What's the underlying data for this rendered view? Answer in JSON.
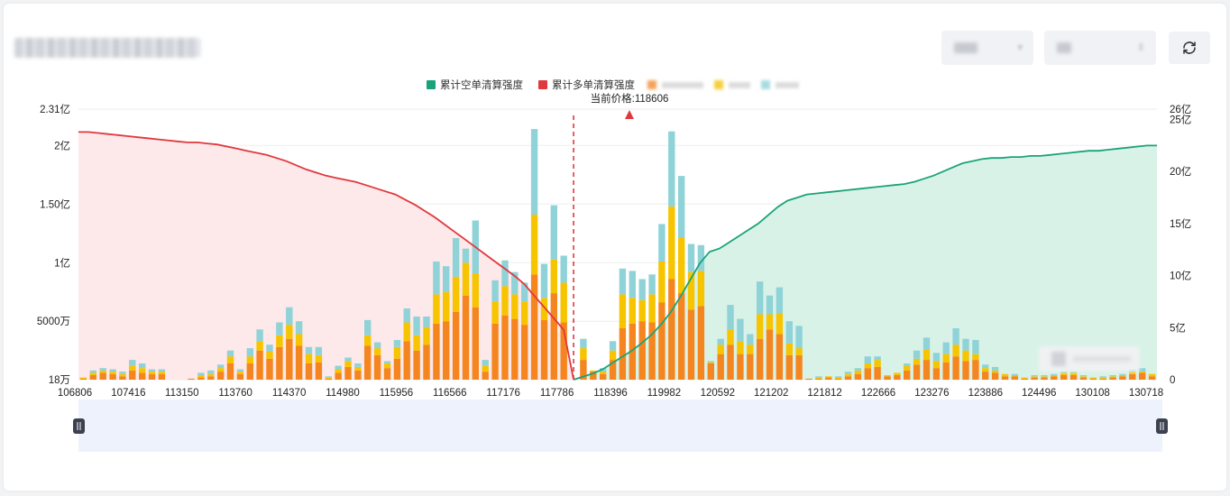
{
  "page": {
    "refresh_icon": "refresh-icon"
  },
  "colors": {
    "short_line": "#1aa37a",
    "long_line": "#e0383d",
    "short_fill": "#d9f2e8",
    "long_fill": "#fde8ea",
    "seg1": "#f5861f",
    "seg2": "#f7c400",
    "seg3": "#8fd3d8",
    "current_price": "#e0383d"
  },
  "legend": [
    {
      "label": "累计空单清算强度",
      "color": "#1aa37a",
      "type": "square"
    },
    {
      "label": "累计多单清算强度",
      "color": "#e0383d",
      "type": "square"
    }
  ],
  "current_price_label": "当前价格:118606",
  "chart_data": {
    "type": "bar",
    "x_tick_labels": [
      "106806",
      "107416",
      "113150",
      "113760",
      "114370",
      "114980",
      "115956",
      "116566",
      "117176",
      "117786",
      "118396",
      "119982",
      "120592",
      "121202",
      "121812",
      "122666",
      "123276",
      "123886",
      "124496",
      "130108",
      "130718"
    ],
    "y_left_tick_labels": [
      "18万",
      "5000万",
      "1亿",
      "1.50亿",
      "2亿",
      "2.31亿"
    ],
    "y_left_ticks": [
      0.0018,
      0.5,
      1.0,
      1.5,
      2.0,
      2.31
    ],
    "y_left_range": [
      0.0018,
      2.31
    ],
    "y_right_tick_labels": [
      "0",
      "5亿",
      "10亿",
      "15亿",
      "20亿",
      "25亿",
      "26亿"
    ],
    "y_right_ticks": [
      0,
      5,
      10,
      15,
      20,
      25,
      26
    ],
    "y_right_range": [
      0,
      26
    ],
    "current_price_index": 50,
    "current_price": 118606,
    "bars": [
      [
        0.01,
        0.01,
        0.0
      ],
      [
        0.04,
        0.02,
        0.02
      ],
      [
        0.06,
        0.02,
        0.02
      ],
      [
        0.05,
        0.02,
        0.02
      ],
      [
        0.03,
        0.02,
        0.02
      ],
      [
        0.08,
        0.04,
        0.05
      ],
      [
        0.06,
        0.04,
        0.04
      ],
      [
        0.05,
        0.02,
        0.02
      ],
      [
        0.05,
        0.02,
        0.02
      ],
      [
        0.0,
        0.0,
        0.0
      ],
      [
        0.0,
        0.0,
        0.0
      ],
      [
        0.01,
        0.0,
        0.0
      ],
      [
        0.02,
        0.02,
        0.02
      ],
      [
        0.03,
        0.02,
        0.03
      ],
      [
        0.07,
        0.03,
        0.03
      ],
      [
        0.14,
        0.06,
        0.05
      ],
      [
        0.05,
        0.02,
        0.02
      ],
      [
        0.14,
        0.06,
        0.07
      ],
      [
        0.25,
        0.08,
        0.1
      ],
      [
        0.18,
        0.06,
        0.06
      ],
      [
        0.28,
        0.1,
        0.11
      ],
      [
        0.35,
        0.12,
        0.15
      ],
      [
        0.29,
        0.1,
        0.11
      ],
      [
        0.14,
        0.08,
        0.06
      ],
      [
        0.15,
        0.06,
        0.07
      ],
      [
        0.01,
        0.01,
        0.01
      ],
      [
        0.06,
        0.03,
        0.03
      ],
      [
        0.11,
        0.05,
        0.03
      ],
      [
        0.08,
        0.03,
        0.03
      ],
      [
        0.29,
        0.09,
        0.13
      ],
      [
        0.21,
        0.06,
        0.05
      ],
      [
        0.1,
        0.04,
        0.02
      ],
      [
        0.18,
        0.1,
        0.06
      ],
      [
        0.33,
        0.16,
        0.12
      ],
      [
        0.25,
        0.13,
        0.16
      ],
      [
        0.3,
        0.15,
        0.09
      ],
      [
        0.48,
        0.25,
        0.28
      ],
      [
        0.5,
        0.25,
        0.22
      ],
      [
        0.58,
        0.3,
        0.33
      ],
      [
        0.72,
        0.28,
        0.12
      ],
      [
        0.62,
        0.29,
        0.45
      ],
      [
        0.07,
        0.05,
        0.05
      ],
      [
        0.48,
        0.19,
        0.18
      ],
      [
        0.55,
        0.25,
        0.22
      ],
      [
        0.52,
        0.21,
        0.19
      ],
      [
        0.47,
        0.2,
        0.16
      ],
      [
        0.9,
        0.51,
        0.73
      ],
      [
        0.51,
        0.19,
        0.29
      ],
      [
        0.74,
        0.29,
        0.46
      ],
      [
        0.49,
        0.34,
        0.23
      ],
      [
        0.0,
        0.0,
        0.0
      ],
      [
        0.17,
        0.1,
        0.08
      ],
      [
        0.07,
        0.01,
        0.0
      ],
      [
        0.05,
        0.02,
        0.03
      ],
      [
        0.17,
        0.08,
        0.08
      ],
      [
        0.44,
        0.29,
        0.22
      ],
      [
        0.48,
        0.22,
        0.23
      ],
      [
        0.5,
        0.18,
        0.18
      ],
      [
        0.49,
        0.24,
        0.17
      ],
      [
        0.66,
        0.35,
        0.32
      ],
      [
        0.86,
        0.62,
        0.64
      ],
      [
        0.74,
        0.47,
        0.53
      ],
      [
        0.6,
        0.32,
        0.24
      ],
      [
        0.63,
        0.3,
        0.22
      ],
      [
        0.14,
        0.01,
        0.01
      ],
      [
        0.22,
        0.08,
        0.05
      ],
      [
        0.3,
        0.13,
        0.21
      ],
      [
        0.22,
        0.11,
        0.19
      ],
      [
        0.22,
        0.08,
        0.09
      ],
      [
        0.35,
        0.21,
        0.28
      ],
      [
        0.43,
        0.13,
        0.16
      ],
      [
        0.39,
        0.18,
        0.22
      ],
      [
        0.21,
        0.1,
        0.19
      ],
      [
        0.21,
        0.06,
        0.19
      ],
      [
        0.01,
        0.0,
        0.0
      ],
      [
        0.01,
        0.01,
        0.01
      ],
      [
        0.02,
        0.01,
        0.0
      ],
      [
        0.01,
        0.01,
        0.01
      ],
      [
        0.03,
        0.02,
        0.02
      ],
      [
        0.05,
        0.03,
        0.02
      ],
      [
        0.1,
        0.04,
        0.06
      ],
      [
        0.11,
        0.06,
        0.03
      ],
      [
        0.03,
        0.01,
        0.0
      ],
      [
        0.04,
        0.02,
        0.0
      ],
      [
        0.08,
        0.04,
        0.02
      ],
      [
        0.13,
        0.05,
        0.07
      ],
      [
        0.17,
        0.09,
        0.1
      ],
      [
        0.1,
        0.06,
        0.07
      ],
      [
        0.15,
        0.07,
        0.1
      ],
      [
        0.2,
        0.1,
        0.14
      ],
      [
        0.16,
        0.09,
        0.1
      ],
      [
        0.17,
        0.05,
        0.12
      ],
      [
        0.07,
        0.03,
        0.03
      ],
      [
        0.06,
        0.02,
        0.03
      ],
      [
        0.03,
        0.02,
        0.0
      ],
      [
        0.03,
        0.01,
        0.01
      ],
      [
        0.01,
        0.01,
        0.0
      ],
      [
        0.02,
        0.01,
        0.01
      ],
      [
        0.02,
        0.01,
        0.01
      ],
      [
        0.03,
        0.01,
        0.01
      ],
      [
        0.04,
        0.02,
        0.01
      ],
      [
        0.04,
        0.02,
        0.01
      ],
      [
        0.02,
        0.01,
        0.01
      ],
      [
        0.01,
        0.01,
        0.0
      ],
      [
        0.01,
        0.01,
        0.01
      ],
      [
        0.02,
        0.01,
        0.01
      ],
      [
        0.03,
        0.01,
        0.01
      ],
      [
        0.05,
        0.02,
        0.02
      ],
      [
        0.06,
        0.01,
        0.03
      ],
      [
        0.03,
        0.02,
        0.0
      ]
    ],
    "long_line": [
      23.8,
      23.8,
      23.7,
      23.6,
      23.5,
      23.4,
      23.3,
      23.2,
      23.1,
      23.0,
      22.9,
      22.8,
      22.8,
      22.7,
      22.6,
      22.4,
      22.2,
      22.0,
      21.8,
      21.6,
      21.3,
      21.0,
      20.6,
      20.2,
      19.9,
      19.6,
      19.4,
      19.2,
      19.0,
      18.7,
      18.4,
      18.1,
      17.8,
      17.3,
      16.8,
      16.2,
      15.6,
      14.9,
      14.2,
      13.5,
      12.8,
      12.1,
      11.4,
      10.7,
      10.0,
      9.2,
      8.1,
      7.0,
      5.9,
      4.8,
      0.0
    ],
    "short_line": [
      0.0,
      0.3,
      0.6,
      1.0,
      1.6,
      2.2,
      2.8,
      3.5,
      4.3,
      5.3,
      6.5,
      8.0,
      9.6,
      11.2,
      12.3,
      12.6,
      13.2,
      13.8,
      14.4,
      15.0,
      15.8,
      16.6,
      17.2,
      17.5,
      17.8,
      17.9,
      18.0,
      18.1,
      18.2,
      18.3,
      18.4,
      18.5,
      18.6,
      18.7,
      18.8,
      19.0,
      19.3,
      19.6,
      20.0,
      20.4,
      20.8,
      21.0,
      21.2,
      21.3,
      21.3,
      21.4,
      21.4,
      21.5,
      21.5,
      21.6,
      21.7,
      21.8,
      21.9,
      22.0,
      22.0,
      22.1,
      22.2,
      22.3,
      22.4,
      22.5,
      22.5
    ]
  }
}
